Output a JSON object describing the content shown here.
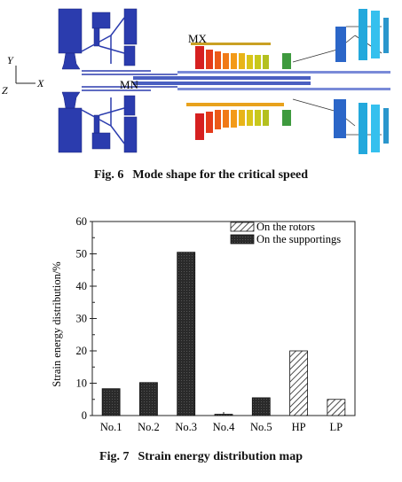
{
  "fig6": {
    "label_mx": "MX",
    "label_mn": "MN",
    "axis_y": "Y",
    "axis_z": "Z",
    "axis_x": "X",
    "caption_num": "Fig. 6",
    "caption_text": "Mode shape for the critical speed"
  },
  "fig7": {
    "caption_num": "Fig. 7",
    "caption_text": "Strain energy distribution map"
  },
  "chart_data": {
    "type": "bar",
    "title": "",
    "xlabel": "",
    "ylabel": "Strain energy distribution/%",
    "ylim": [
      0,
      60
    ],
    "yticks": [
      0,
      10,
      20,
      30,
      40,
      50,
      60
    ],
    "categories": [
      "No.1",
      "No.2",
      "No.3",
      "No.4",
      "No.5",
      "HP",
      "LP"
    ],
    "series": [
      {
        "name": "On the rotors",
        "pattern": "hatched",
        "values": [
          null,
          null,
          null,
          null,
          null,
          20.0,
          5.0
        ]
      },
      {
        "name": "On the supportings",
        "pattern": "dark",
        "values": [
          8.3,
          10.2,
          50.5,
          0.4,
          5.5,
          null,
          null
        ]
      }
    ],
    "legend_position": "top-right",
    "grid": false
  }
}
